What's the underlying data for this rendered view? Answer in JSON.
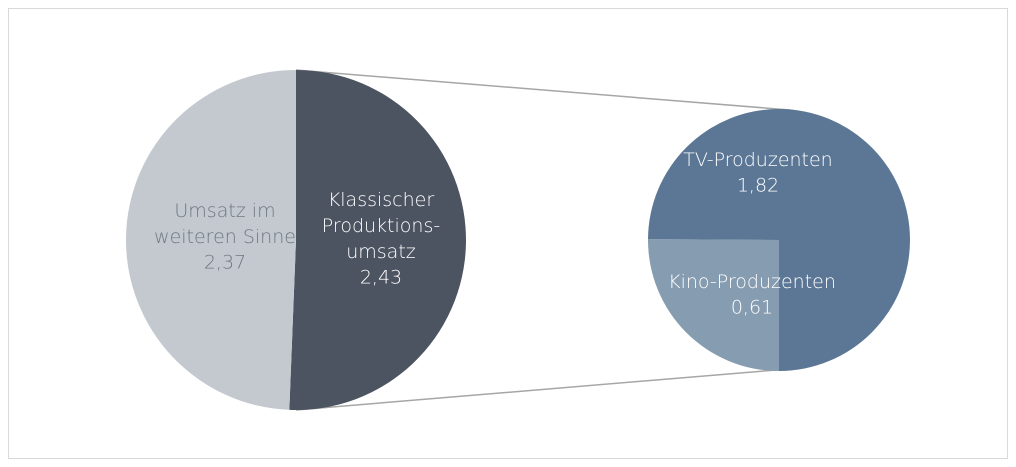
{
  "chart_data": {
    "type": "pie-of-pie",
    "categories": [
      "Umsatz im\nweiteren Sinne",
      "Klassischer\nProduktions-\numsatz"
    ],
    "values": [
      2.37,
      2.43
    ],
    "value_labels": [
      "2,37",
      "2,43"
    ],
    "colors": [
      "#c3c9cf",
      "#4d5461"
    ],
    "secondary": {
      "categories": [
        "TV-Produzenten",
        "Kino-Produzenten"
      ],
      "values": [
        1.82,
        0.61
      ],
      "value_labels": [
        "1,82",
        "0,61"
      ],
      "colors": [
        "#5b7795",
        "#869cb0"
      ]
    }
  }
}
